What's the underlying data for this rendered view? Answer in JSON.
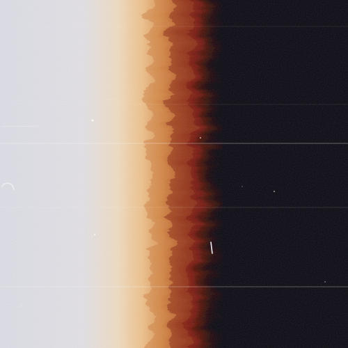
{
  "image": {
    "subject": "film-frame",
    "colors": {
      "exposed_white": "#dcdde6",
      "exposed_white_edge": "#e3e1e6",
      "cream": "#f0dcc1",
      "peach": "#efbf86",
      "orange": "#d88a45",
      "rust": "#a84318",
      "deep_red": "#6e0f06",
      "dark_maroon": "#2a0608",
      "unexposed_black": "#07060f",
      "scratch": "#f4f2f6"
    }
  }
}
